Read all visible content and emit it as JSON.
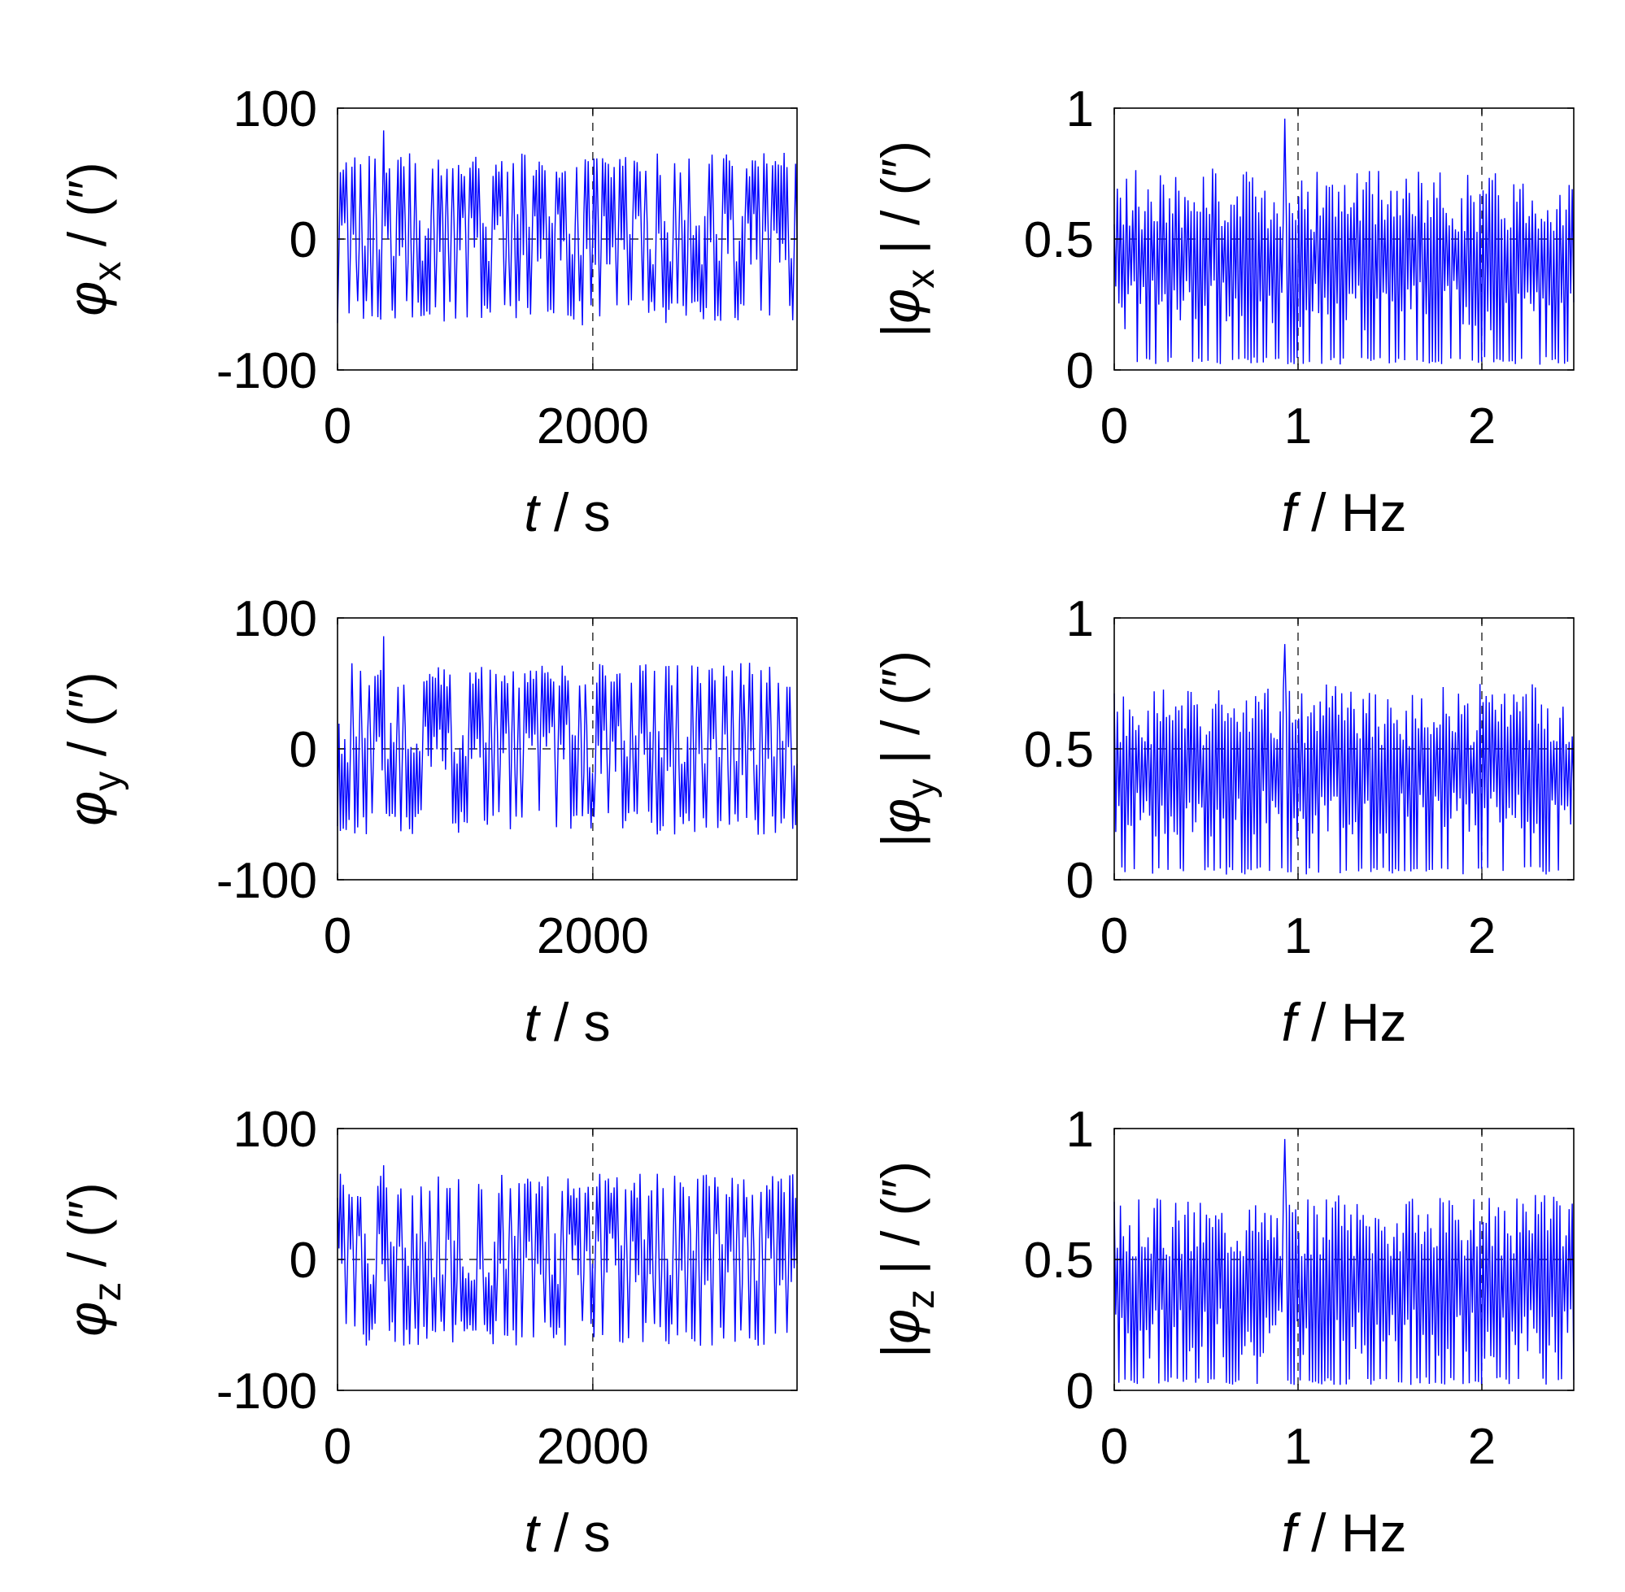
{
  "chart_data": [
    {
      "type": "line",
      "position": "row-1-left",
      "ylabel": {
        "symbol": "φ",
        "sub": "x",
        "rest": " / (″)"
      },
      "xlabel": {
        "var": "t",
        "rest": " / s"
      },
      "xlim": [
        0,
        3600
      ],
      "ylim": [
        -100,
        100
      ],
      "xticks": [
        0,
        2000
      ],
      "yticks": [
        -100,
        0,
        100
      ],
      "xtick_labels": [
        "0",
        "2000"
      ],
      "ytick_labels": [
        "-100",
        "0",
        "100"
      ],
      "grid": "dashed",
      "color": "#0000ff",
      "series": [
        {
          "seed": 11,
          "n": 320,
          "kind": "time",
          "amp": 55,
          "center": 0,
          "spread": 10,
          "peak": 83
        }
      ]
    },
    {
      "type": "line",
      "position": "row-1-right",
      "ylabel": {
        "symbol": "φ",
        "sub": "x",
        "pre": "|",
        "rest": " | / (″)"
      },
      "xlabel": {
        "var": "f",
        "rest": " / Hz"
      },
      "xlim": [
        0,
        2.5
      ],
      "ylim": [
        0,
        1
      ],
      "xticks": [
        0,
        1,
        2
      ],
      "yticks": [
        0,
        0.5,
        1
      ],
      "xtick_labels": [
        "0",
        "1",
        "2"
      ],
      "ytick_labels": [
        "0",
        "0.5",
        "1"
      ],
      "grid": "dashed",
      "color": "#0000ff",
      "series": [
        {
          "seed": 23,
          "n": 300,
          "kind": "spec",
          "hi": 0.7,
          "mid": 0.25,
          "peak": 0.96
        }
      ]
    },
    {
      "type": "line",
      "position": "row-2-left",
      "ylabel": {
        "symbol": "φ",
        "sub": "y",
        "rest": " / (″)"
      },
      "xlabel": {
        "var": "t",
        "rest": " / s"
      },
      "xlim": [
        0,
        3600
      ],
      "ylim": [
        -100,
        100
      ],
      "xticks": [
        0,
        2000
      ],
      "yticks": [
        -100,
        0,
        100
      ],
      "xtick_labels": [
        "0",
        "2000"
      ],
      "ytick_labels": [
        "-100",
        "0",
        "100"
      ],
      "grid": "dashed",
      "color": "#0000ff",
      "series": [
        {
          "seed": 37,
          "n": 320,
          "kind": "time",
          "amp": 55,
          "center": 0,
          "spread": 10,
          "peak": 86
        }
      ]
    },
    {
      "type": "line",
      "position": "row-2-right",
      "ylabel": {
        "symbol": "φ",
        "sub": "y",
        "pre": "|",
        "rest": " | / (″)"
      },
      "xlabel": {
        "var": "f",
        "rest": " / Hz"
      },
      "xlim": [
        0,
        2.5
      ],
      "ylim": [
        0,
        1
      ],
      "xticks": [
        0,
        1,
        2
      ],
      "yticks": [
        0,
        0.5,
        1
      ],
      "xtick_labels": [
        "0",
        "1",
        "2"
      ],
      "ytick_labels": [
        "0",
        "0.5",
        "1"
      ],
      "grid": "dashed",
      "color": "#0000ff",
      "series": [
        {
          "seed": 41,
          "n": 300,
          "kind": "spec",
          "hi": 0.68,
          "mid": 0.25,
          "peak": 0.9
        }
      ]
    },
    {
      "type": "line",
      "position": "row-3-left",
      "ylabel": {
        "symbol": "φ",
        "sub": "z",
        "rest": " / (″)"
      },
      "xlabel": {
        "var": "t",
        "rest": " / s"
      },
      "xlim": [
        0,
        3600
      ],
      "ylim": [
        -100,
        100
      ],
      "xticks": [
        0,
        2000
      ],
      "yticks": [
        -100,
        0,
        100
      ],
      "xtick_labels": [
        "0",
        "2000"
      ],
      "ytick_labels": [
        "-100",
        "0",
        "100"
      ],
      "grid": "dashed",
      "color": "#0000ff",
      "series": [
        {
          "seed": 53,
          "n": 320,
          "kind": "time",
          "amp": 55,
          "center": 0,
          "spread": 10,
          "peak": 72
        }
      ]
    },
    {
      "type": "line",
      "position": "row-3-right",
      "ylabel": {
        "symbol": "φ",
        "sub": "z",
        "pre": "|",
        "rest": " | / (″)"
      },
      "xlabel": {
        "var": "f",
        "rest": " / Hz"
      },
      "xlim": [
        0,
        2.5
      ],
      "ylim": [
        0,
        1
      ],
      "xticks": [
        0,
        1,
        2
      ],
      "yticks": [
        0,
        0.5,
        1
      ],
      "xtick_labels": [
        "0",
        "1",
        "2"
      ],
      "ytick_labels": [
        "0",
        "0.5",
        "1"
      ],
      "grid": "dashed",
      "color": "#0000ff",
      "series": [
        {
          "seed": 67,
          "n": 300,
          "kind": "spec",
          "hi": 0.68,
          "mid": 0.22,
          "peak": 0.96
        }
      ]
    }
  ]
}
